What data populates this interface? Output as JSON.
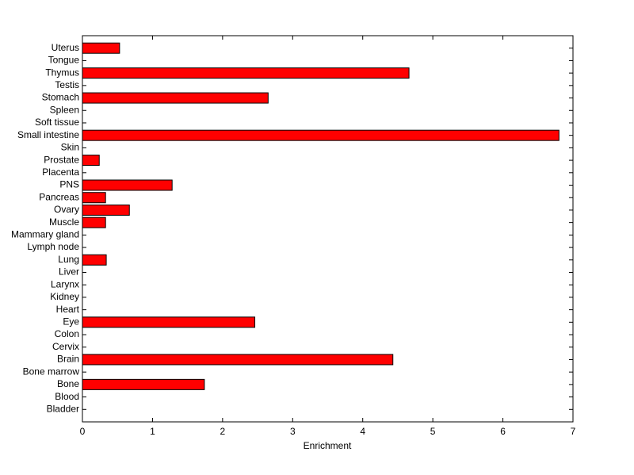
{
  "chart_data": {
    "type": "barh",
    "xlabel": "Enrichment",
    "categories": [
      "Bladder",
      "Blood",
      "Bone",
      "Bone marrow",
      "Brain",
      "Cervix",
      "Colon",
      "Eye",
      "Heart",
      "Kidney",
      "Larynx",
      "Liver",
      "Lung",
      "Lymph node",
      "Mammary gland",
      "Muscle",
      "Ovary",
      "Pancreas",
      "PNS",
      "Placenta",
      "Prostate",
      "Skin",
      "Small intestine",
      "Soft tissue",
      "Spleen",
      "Stomach",
      "Testis",
      "Thymus",
      "Tongue",
      "Uterus"
    ],
    "values": [
      0,
      0,
      1.74,
      0,
      4.43,
      0,
      0,
      2.46,
      0,
      0,
      0,
      0,
      0.34,
      0,
      0,
      0.33,
      0.67,
      0.33,
      1.28,
      0,
      0.24,
      0,
      6.8,
      0,
      0,
      2.65,
      0,
      4.66,
      0,
      0.53
    ],
    "color": "#ff0000",
    "xlim": [
      0,
      7
    ],
    "xticks": [
      0,
      1,
      2,
      3,
      4,
      5,
      6,
      7
    ]
  }
}
